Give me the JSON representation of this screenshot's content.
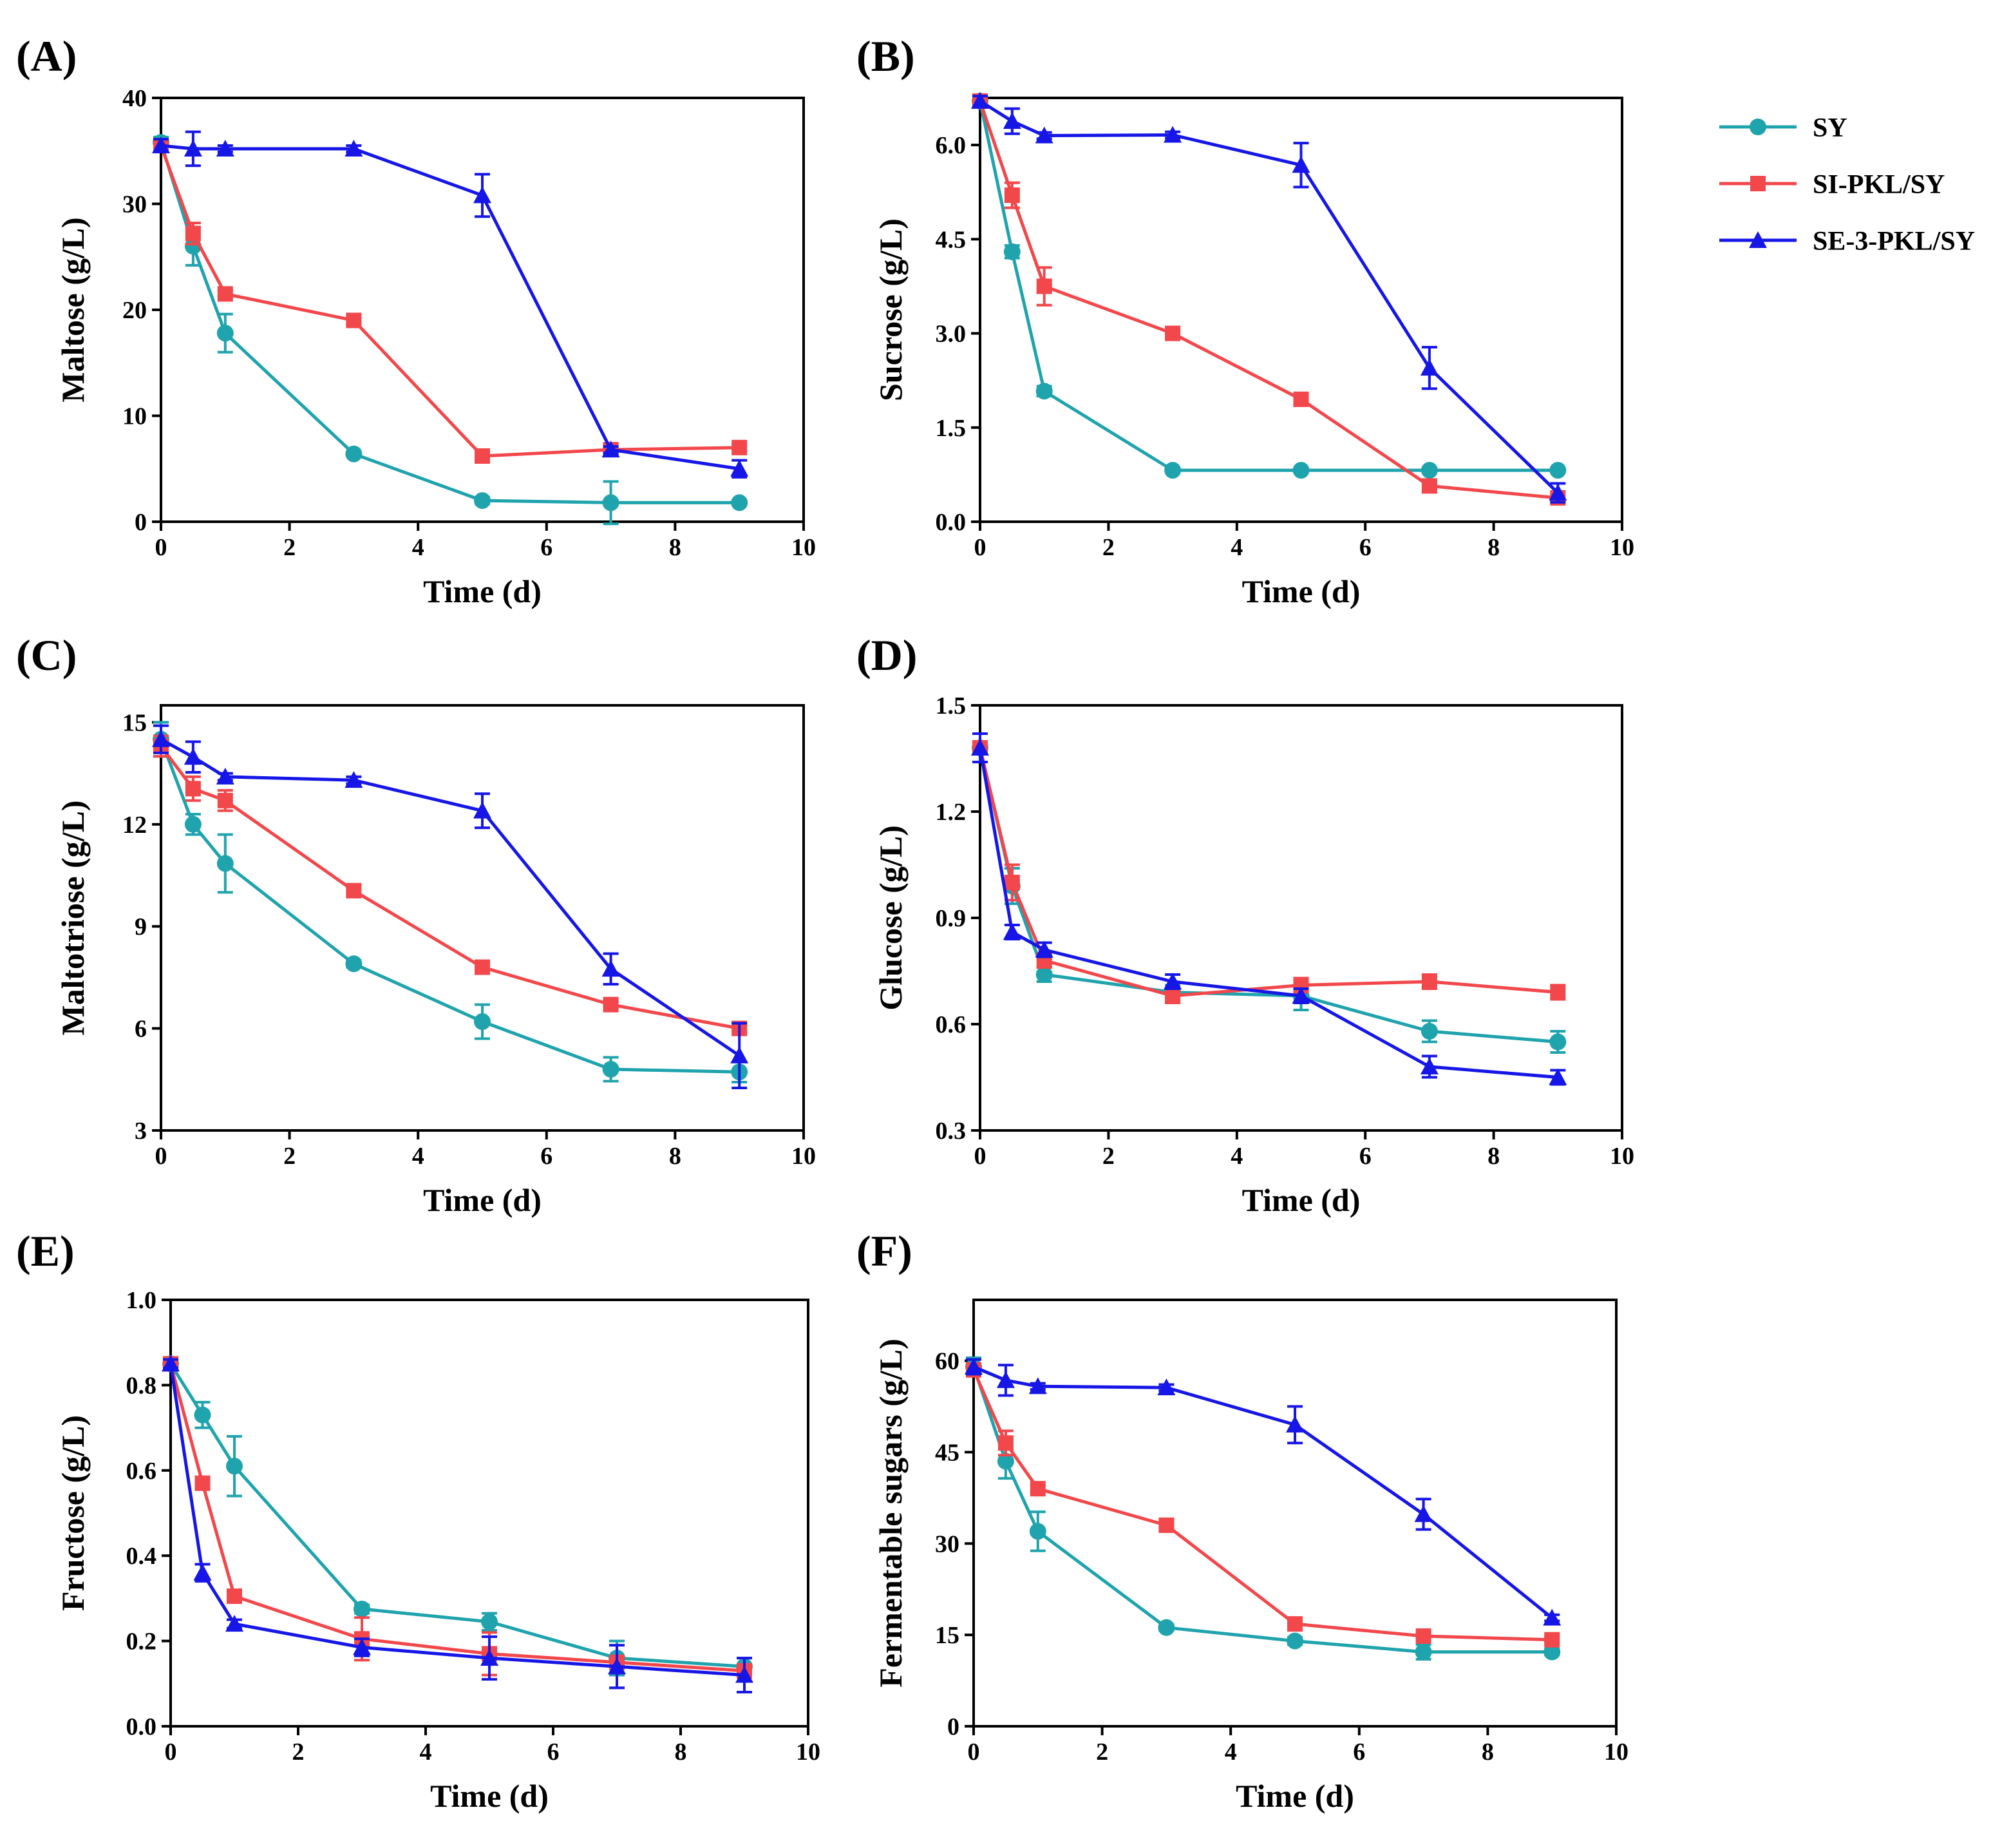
{
  "legend": {
    "items": [
      {
        "name": "SY",
        "color": "#1fa3ad",
        "marker": "circle"
      },
      {
        "name": "SI-PKL/SY",
        "color": "#f2474b",
        "marker": "square"
      },
      {
        "name": "SE-3-PKL/SY",
        "color": "#1616e6",
        "marker": "triangle"
      }
    ]
  },
  "chart_data": [
    {
      "panel": "(A)",
      "type": "line",
      "xlabel": "Time (d)",
      "ylabel": "Maltose (g/L)",
      "xlim": [
        0,
        10
      ],
      "ylim": [
        0,
        40
      ],
      "xticks": [
        0,
        2,
        4,
        6,
        8,
        10
      ],
      "yticks": [
        0,
        10,
        20,
        30,
        40
      ],
      "x": [
        0,
        0.5,
        1,
        3,
        5,
        7,
        9
      ],
      "series": [
        {
          "name": "SY",
          "values": [
            35.8,
            26.0,
            17.8,
            6.4,
            2.0,
            1.8,
            1.8
          ],
          "errors": [
            0.5,
            1.8,
            1.8,
            0.2,
            0.3,
            2.0,
            0.2
          ]
        },
        {
          "name": "SI-PKL/SY",
          "values": [
            35.5,
            27.2,
            21.5,
            19.0,
            6.2,
            6.8,
            7.0
          ],
          "errors": [
            0.5,
            1.0,
            0.3,
            0.3,
            0.3,
            0.4,
            0.3
          ]
        },
        {
          "name": "SE-3-PKL/SY",
          "values": [
            35.5,
            35.2,
            35.2,
            35.2,
            30.8,
            6.8,
            5.0
          ],
          "errors": [
            0.6,
            1.6,
            0.3,
            0.3,
            2.0,
            0.3,
            0.8
          ]
        }
      ]
    },
    {
      "panel": "(B)",
      "type": "line",
      "xlabel": "Time (d)",
      "ylabel": "Sucrose (g/L)",
      "xlim": [
        0,
        10
      ],
      "ylim": [
        0,
        6.75
      ],
      "xticks": [
        0,
        2,
        4,
        6,
        8,
        10
      ],
      "yticks": [
        "0.0",
        "1.5",
        "3.0",
        "4.5",
        "6.0"
      ],
      "x": [
        0,
        0.5,
        1,
        3,
        5,
        7,
        9
      ],
      "series": [
        {
          "name": "SY",
          "values": [
            6.7,
            4.3,
            2.08,
            0.82,
            0.82,
            0.82,
            0.82
          ],
          "errors": [
            0.08,
            0.1,
            0.08,
            0.03,
            0.03,
            0.03,
            0.03
          ]
        },
        {
          "name": "SI-PKL/SY",
          "values": [
            6.7,
            5.2,
            3.75,
            3.0,
            1.95,
            0.57,
            0.38
          ],
          "errors": [
            0.08,
            0.2,
            0.3,
            0.05,
            0.05,
            0.05,
            0.05
          ]
        },
        {
          "name": "SE-3-PKL/SY",
          "values": [
            6.7,
            6.38,
            6.15,
            6.16,
            5.68,
            2.45,
            0.46
          ],
          "errors": [
            0.08,
            0.2,
            0.05,
            0.05,
            0.35,
            0.33,
            0.15
          ]
        }
      ]
    },
    {
      "panel": "(C)",
      "type": "line",
      "xlabel": "Time (d)",
      "ylabel": "Maltotriose (g/L)",
      "xlim": [
        0,
        10
      ],
      "ylim": [
        3,
        15.5
      ],
      "xticks": [
        0,
        2,
        4,
        6,
        8,
        10
      ],
      "yticks": [
        3,
        6,
        9,
        12,
        15
      ],
      "x": [
        0,
        0.5,
        1,
        3,
        5,
        7,
        9
      ],
      "series": [
        {
          "name": "SY",
          "values": [
            14.5,
            12.0,
            10.85,
            7.9,
            6.2,
            4.8,
            4.72
          ],
          "errors": [
            0.5,
            0.3,
            0.85,
            0.1,
            0.5,
            0.35,
            0.3
          ]
        },
        {
          "name": "SI-PKL/SY",
          "values": [
            14.3,
            13.05,
            12.7,
            10.05,
            7.8,
            6.7,
            6.0
          ],
          "errors": [
            0.3,
            0.35,
            0.3,
            0.15,
            0.15,
            0.1,
            0.1
          ]
        },
        {
          "name": "SE-3-PKL/SY",
          "values": [
            14.5,
            13.98,
            13.4,
            13.3,
            12.4,
            7.75,
            5.2
          ],
          "errors": [
            0.4,
            0.45,
            0.1,
            0.1,
            0.5,
            0.45,
            0.95
          ]
        }
      ]
    },
    {
      "panel": "(D)",
      "type": "line",
      "xlabel": "Time (d)",
      "ylabel": "Glucose (g/L)",
      "xlim": [
        0,
        10
      ],
      "ylim": [
        0.3,
        1.5
      ],
      "xticks": [
        0,
        2,
        4,
        6,
        8,
        10
      ],
      "yticks": [
        "0.3",
        "0.6",
        "0.9",
        "1.2",
        "1.5"
      ],
      "x": [
        0,
        0.5,
        1,
        3,
        5,
        7,
        9
      ],
      "series": [
        {
          "name": "SY",
          "values": [
            1.38,
            0.99,
            0.74,
            0.69,
            0.68,
            0.58,
            0.55
          ],
          "errors": [
            0.04,
            0.05,
            0.02,
            0.02,
            0.04,
            0.03,
            0.03
          ]
        },
        {
          "name": "SI-PKL/SY",
          "values": [
            1.38,
            1.0,
            0.78,
            0.68,
            0.71,
            0.72,
            0.69
          ],
          "errors": [
            0.04,
            0.05,
            0.02,
            0.02,
            0.02,
            0.02,
            0.02
          ]
        },
        {
          "name": "SE-3-PKL/SY",
          "values": [
            1.38,
            0.86,
            0.81,
            0.72,
            0.68,
            0.48,
            0.45
          ],
          "errors": [
            0.04,
            0.02,
            0.02,
            0.02,
            0.02,
            0.03,
            0.02
          ]
        }
      ]
    },
    {
      "panel": "(E)",
      "type": "line",
      "xlabel": "Time (d)",
      "ylabel": "Fructose (g/L)",
      "xlim": [
        0,
        10
      ],
      "ylim": [
        0,
        1.0
      ],
      "xticks": [
        0,
        2,
        4,
        6,
        8,
        10
      ],
      "yticks": [
        "0.0",
        "0.2",
        "0.4",
        "0.6",
        "0.8",
        "1.0"
      ],
      "x": [
        0,
        0.5,
        1,
        3,
        5,
        7,
        9
      ],
      "series": [
        {
          "name": "SY",
          "values": [
            0.85,
            0.73,
            0.61,
            0.275,
            0.245,
            0.16,
            0.14
          ],
          "errors": [
            0.01,
            0.03,
            0.07,
            0.01,
            0.02,
            0.04,
            0.02
          ]
        },
        {
          "name": "SI-PKL/SY",
          "values": [
            0.85,
            0.57,
            0.305,
            0.205,
            0.17,
            0.15,
            0.13
          ],
          "errors": [
            0.01,
            0.01,
            0.01,
            0.05,
            0.05,
            0.01,
            0.01
          ]
        },
        {
          "name": "SE-3-PKL/SY",
          "values": [
            0.85,
            0.36,
            0.24,
            0.185,
            0.16,
            0.14,
            0.12
          ],
          "errors": [
            0.01,
            0.02,
            0.01,
            0.02,
            0.05,
            0.05,
            0.04
          ]
        }
      ]
    },
    {
      "panel": "(F)",
      "type": "line",
      "xlabel": "Time (d)",
      "ylabel": "Fermentable sugars (g/L)",
      "xlim": [
        0,
        10
      ],
      "ylim": [
        0,
        70
      ],
      "xticks": [
        0,
        2,
        4,
        6,
        8,
        10
      ],
      "yticks": [
        0,
        15,
        30,
        45,
        60
      ],
      "x": [
        0,
        0.5,
        1,
        3,
        5,
        7,
        9
      ],
      "series": [
        {
          "name": "SY",
          "values": [
            59.0,
            43.5,
            32.0,
            16.2,
            14.0,
            12.2,
            12.2
          ],
          "errors": [
            1.5,
            2.8,
            3.2,
            0.5,
            0.6,
            1.2,
            0.5
          ]
        },
        {
          "name": "SI-PKL/SY",
          "values": [
            58.5,
            46.5,
            39.0,
            33.0,
            16.8,
            14.8,
            14.2
          ],
          "errors": [
            0.8,
            2.0,
            0.5,
            0.5,
            0.5,
            0.5,
            0.5
          ]
        },
        {
          "name": "SE-3-PKL/SY",
          "values": [
            59.0,
            56.8,
            55.8,
            55.6,
            49.5,
            34.8,
            17.8
          ],
          "errors": [
            1.2,
            2.5,
            0.5,
            0.5,
            3.0,
            2.5,
            0.5
          ]
        }
      ]
    }
  ]
}
